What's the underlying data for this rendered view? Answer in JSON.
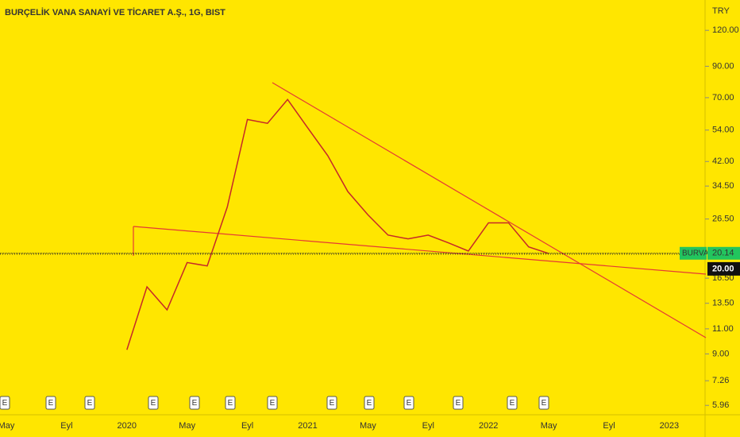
{
  "chart_data": {
    "type": "line",
    "title": "BURÇELİK VANA SANAYİ VE TİCARET A.Ş., 1G, BIST",
    "currency": "TRY",
    "log_scale": true,
    "categories": [
      "May",
      null,
      null,
      "Eyl",
      null,
      null,
      "2020",
      null,
      null,
      "May",
      null,
      null,
      "Eyl",
      null,
      null,
      "2021",
      null,
      null,
      "May",
      null,
      null,
      "Eyl",
      null,
      null,
      "2022",
      null,
      null,
      "May",
      null,
      null,
      "Eyl",
      null,
      null,
      "2023"
    ],
    "series": [
      {
        "name": "BURVA",
        "color": "#c62828",
        "values": [
          null,
          null,
          null,
          null,
          null,
          null,
          9.3,
          15.4,
          12.8,
          18.7,
          18.2,
          29.2,
          58.8,
          57,
          69,
          55,
          44,
          33,
          27.4,
          23.3,
          22.6,
          23.3,
          21.9,
          20.5,
          25.7,
          25.7,
          21.2,
          20.1,
          null,
          null,
          null,
          null,
          null,
          null
        ]
      }
    ],
    "ylim": [
      5.6,
      153
    ],
    "yticks": [
      {
        "value": 5.96,
        "label": "5.96"
      },
      {
        "value": 7.26,
        "label": "7.26"
      },
      {
        "value": 9,
        "label": "9.00"
      },
      {
        "value": 11,
        "label": "11.00"
      },
      {
        "value": 13.5,
        "label": "13.50"
      },
      {
        "value": 16.5,
        "label": "16.50"
      },
      {
        "value": 26.5,
        "label": "26.50"
      },
      {
        "value": 34.5,
        "label": "34.50"
      },
      {
        "value": 42,
        "label": "42.00"
      },
      {
        "value": 54,
        "label": "54.00"
      },
      {
        "value": 70,
        "label": "70.00"
      },
      {
        "value": 90,
        "label": "90.00"
      },
      {
        "value": 120,
        "label": "120.00"
      }
    ],
    "hline": {
      "value": 20,
      "label": "20.00"
    },
    "last_price": {
      "value": 20.14,
      "label": "20.14"
    },
    "earnings_marker": "E"
  }
}
